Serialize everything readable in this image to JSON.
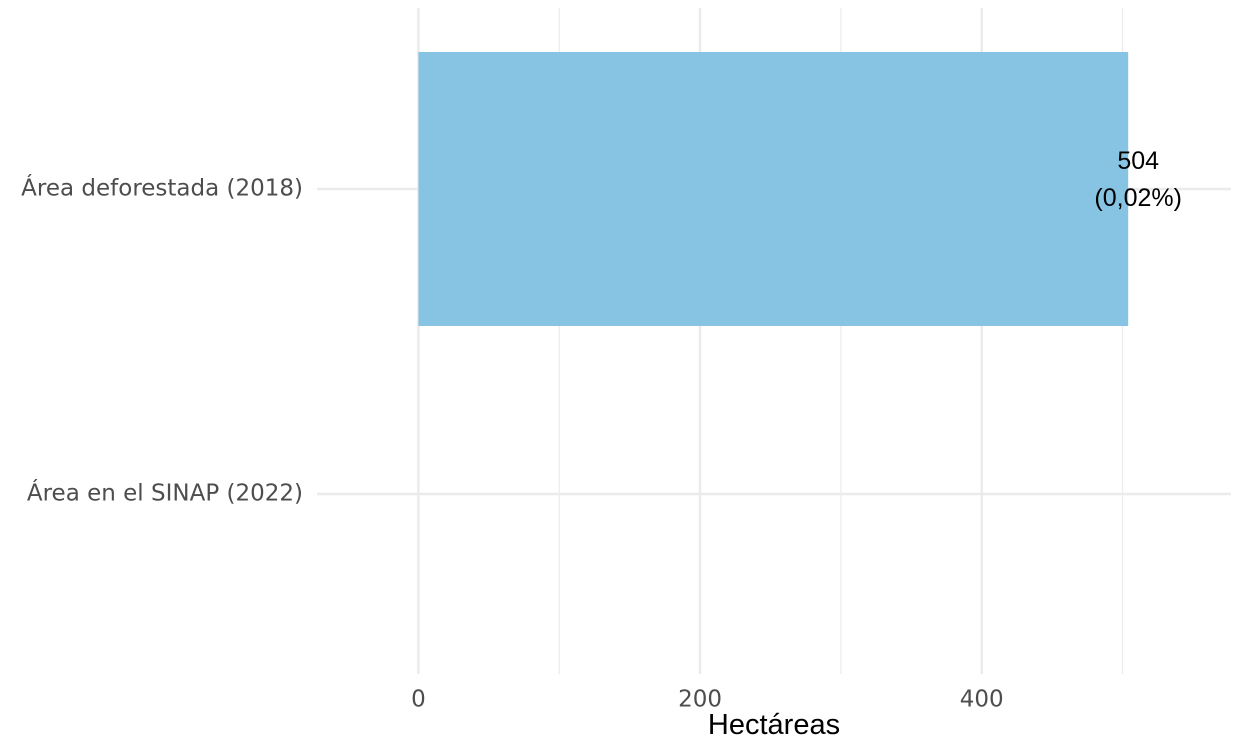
{
  "chart_data": {
    "type": "bar",
    "orientation": "horizontal",
    "categories": [
      "Área deforestada (2018)",
      "Área en el SINAP (2022)"
    ],
    "values": [
      504,
      0
    ],
    "data_labels": [
      {
        "category": "Área deforestada (2018)",
        "lines": [
          "504",
          "(0,02%)"
        ]
      }
    ],
    "xlabel": "Hectáreas",
    "ylabel": "",
    "title": "",
    "xlim": [
      -72,
      577
    ],
    "x_ticks": [
      0,
      200,
      400
    ],
    "x_tick_labels": [
      "0",
      "200",
      "400"
    ],
    "grid": true,
    "legend": "none",
    "colors": {
      "bar": "#87c4e3",
      "grid": "#ebebeb",
      "axis_text": "#4d4d4d",
      "label_text": "#000000"
    }
  }
}
